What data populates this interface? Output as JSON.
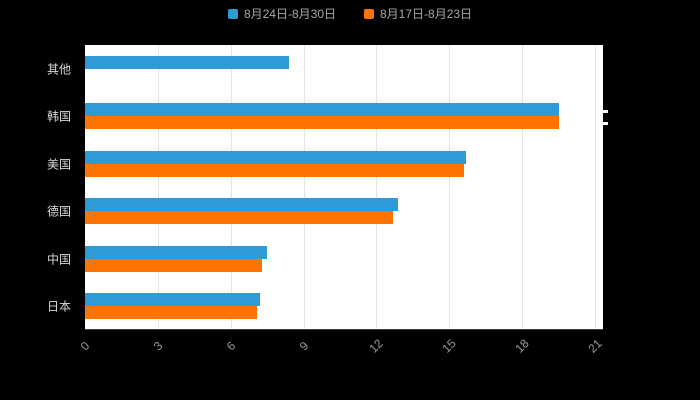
{
  "chart_data": {
    "type": "bar",
    "orientation": "horizontal",
    "title": "",
    "xlabel": "",
    "ylabel": "",
    "categories": [
      "其他",
      "韩国",
      "美国",
      "德国",
      "中国",
      "日本"
    ],
    "series": [
      {
        "name": "8月24日-8月30日",
        "color": "#2E9BD6",
        "values": [
          8.4,
          19.5,
          15.7,
          12.9,
          7.5,
          7.2
        ]
      },
      {
        "name": "8月17日-8月23日",
        "color": "#FF7300",
        "values": [
          0,
          19.5,
          15.6,
          12.7,
          7.3,
          7.1
        ]
      }
    ],
    "xlim": [
      0,
      21
    ],
    "x_ticks": [
      "0",
      "3",
      "6",
      "9",
      "12",
      "15",
      "18",
      "21"
    ],
    "x_tick_rotation": 45,
    "grid": true,
    "legend_position": "top",
    "colors": {
      "background": "#000000",
      "plot_background": "#ffffff",
      "gridline": "#e4e4e4",
      "axis_line": "#3d3d3d",
      "tick_label": "#999999",
      "category_label": "#d9d9d9",
      "legend_label": "#a6a6a6"
    }
  }
}
